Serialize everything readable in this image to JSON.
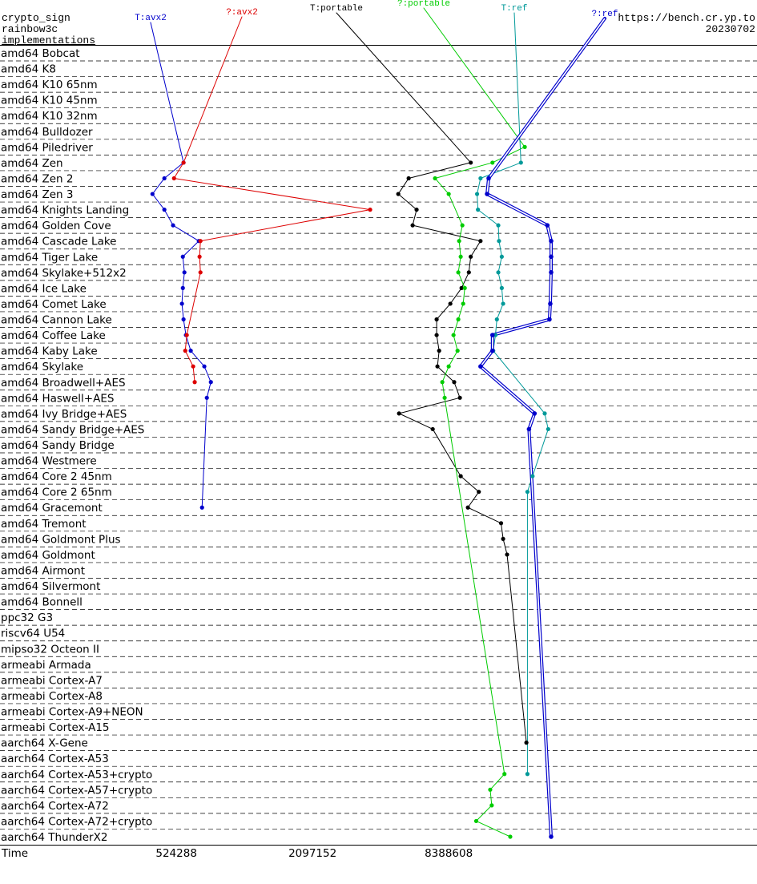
{
  "chart_data": {
    "type": "line",
    "title": "crypto_sign",
    "subtitle": "rainbow3c",
    "y_label": "implementations",
    "source": "https://bench.cr.yp.to",
    "date": "20230702",
    "x_label": "Time",
    "x_scale": "log",
    "xlim": [
      100000,
      200000000
    ],
    "xticks": [
      524288,
      2097152,
      8388608
    ],
    "categories": [
      "amd64 Bobcat",
      "amd64 K8",
      "amd64 K10 65nm",
      "amd64 K10 45nm",
      "amd64 K10 32nm",
      "amd64 Bulldozer",
      "amd64 Piledriver",
      "amd64 Zen",
      "amd64 Zen 2",
      "amd64 Zen 3",
      "amd64 Knights Landing",
      "amd64 Golden Cove",
      "amd64 Cascade Lake",
      "amd64 Tiger Lake",
      "amd64 Skylake+512x2",
      "amd64 Ice Lake",
      "amd64 Comet Lake",
      "amd64 Cannon Lake",
      "amd64 Coffee Lake",
      "amd64 Kaby Lake",
      "amd64 Skylake",
      "amd64 Broadwell+AES",
      "amd64 Haswell+AES",
      "amd64 Ivy Bridge+AES",
      "amd64 Sandy Bridge+AES",
      "amd64 Sandy Bridge",
      "amd64 Westmere",
      "amd64 Core 2 45nm",
      "amd64 Core 2 65nm",
      "amd64 Gracemont",
      "amd64 Tremont",
      "amd64 Goldmont Plus",
      "amd64 Goldmont",
      "amd64 Airmont",
      "amd64 Silvermont",
      "amd64 Bonnell",
      "ppc32 G3",
      "riscv64 U54",
      "mipso32 Octeon II",
      "armeabi Armada",
      "armeabi Cortex-A7",
      "armeabi Cortex-A8",
      "armeabi Cortex-A9+NEON",
      "armeabi Cortex-A15",
      "aarch64 X-Gene",
      "aarch64 Cortex-A53",
      "aarch64 Cortex-A53+crypto",
      "aarch64 Cortex-A57+crypto",
      "aarch64 Cortex-A72",
      "aarch64 Cortex-A72+crypto",
      "aarch64 ThunderX2"
    ],
    "series": [
      {
        "name": "T:avx2",
        "color": "#0000cc",
        "line_style": "single",
        "values": [
          null,
          null,
          null,
          null,
          null,
          null,
          null,
          564000,
          464000,
          411000,
          464000,
          507000,
          659000,
          560000,
          569000,
          560000,
          555000,
          564000,
          578000,
          607000,
          697000,
          745000,
          715000,
          null,
          null,
          null,
          null,
          null,
          null,
          681000,
          null,
          null,
          null,
          null,
          null,
          null,
          null,
          null,
          null,
          null,
          null,
          null,
          null,
          null,
          null,
          null,
          null,
          null,
          null,
          null,
          null
        ]
      },
      {
        "name": "?:avx2",
        "color": "#dd0000",
        "line_style": "single",
        "values": [
          null,
          null,
          null,
          null,
          null,
          null,
          null,
          564000,
          512000,
          null,
          3770000,
          null,
          670000,
          664000,
          670000,
          null,
          null,
          null,
          583000,
          574000,
          622000,
          632000,
          null,
          null,
          null,
          null,
          null,
          null,
          null,
          null,
          null,
          null,
          null,
          null,
          null,
          null,
          null,
          null,
          null,
          null,
          null,
          null,
          null,
          null,
          null,
          null,
          null,
          null,
          null,
          null,
          null
        ]
      },
      {
        "name": "T:portable",
        "color": "#000000",
        "line_style": "single",
        "values": [
          null,
          null,
          null,
          null,
          null,
          null,
          null,
          10500000,
          5580000,
          5020000,
          6050000,
          5810000,
          11600000,
          10500000,
          10300000,
          9560000,
          8530000,
          7420000,
          7420000,
          7610000,
          7480000,
          8870000,
          9400000,
          5060000,
          7130000,
          null,
          null,
          9480000,
          11400000,
          10200000,
          14300000,
          14600000,
          15200000,
          null,
          null,
          null,
          null,
          null,
          null,
          null,
          null,
          null,
          null,
          null,
          18500000,
          null,
          null,
          null,
          null,
          null,
          null
        ]
      },
      {
        "name": "?:portable",
        "color": "#00cc00",
        "line_style": "single",
        "values": [
          null,
          null,
          null,
          null,
          null,
          null,
          18200000,
          13100000,
          7300000,
          8390000,
          null,
          9640000,
          9330000,
          9480000,
          9250000,
          9880000,
          9720000,
          9250000,
          8810000,
          9180000,
          8390000,
          7860000,
          8050000,
          null,
          null,
          null,
          null,
          null,
          null,
          null,
          null,
          null,
          null,
          null,
          null,
          null,
          null,
          null,
          null,
          null,
          null,
          null,
          null,
          null,
          null,
          null,
          14800000,
          12800000,
          13000000,
          11100000,
          15700000
        ]
      },
      {
        "name": "T:ref",
        "color": "#009999",
        "line_style": "single",
        "values": [
          null,
          null,
          null,
          null,
          null,
          null,
          null,
          17500000,
          11600000,
          11200000,
          11300000,
          13900000,
          14000000,
          14400000,
          13900000,
          14400000,
          14600000,
          13700000,
          13500000,
          13200000,
          null,
          null,
          null,
          22300000,
          23100000,
          null,
          null,
          19700000,
          18700000,
          null,
          null,
          null,
          null,
          null,
          null,
          null,
          null,
          null,
          null,
          null,
          null,
          null,
          null,
          null,
          null,
          null,
          18700000,
          null,
          null,
          null,
          null
        ]
      },
      {
        "name": "?:ref",
        "color": "#0000cc",
        "line_style": "double",
        "values": [
          null,
          null,
          null,
          null,
          null,
          null,
          null,
          null,
          12600000,
          12400000,
          null,
          22900000,
          23800000,
          23800000,
          23800000,
          null,
          23600000,
          23400000,
          13100000,
          13100000,
          11600000,
          null,
          null,
          20100000,
          19000000,
          null,
          null,
          null,
          null,
          null,
          null,
          null,
          null,
          null,
          null,
          null,
          null,
          null,
          null,
          null,
          null,
          null,
          null,
          null,
          null,
          null,
          null,
          null,
          null,
          null,
          23800000
        ]
      }
    ]
  }
}
